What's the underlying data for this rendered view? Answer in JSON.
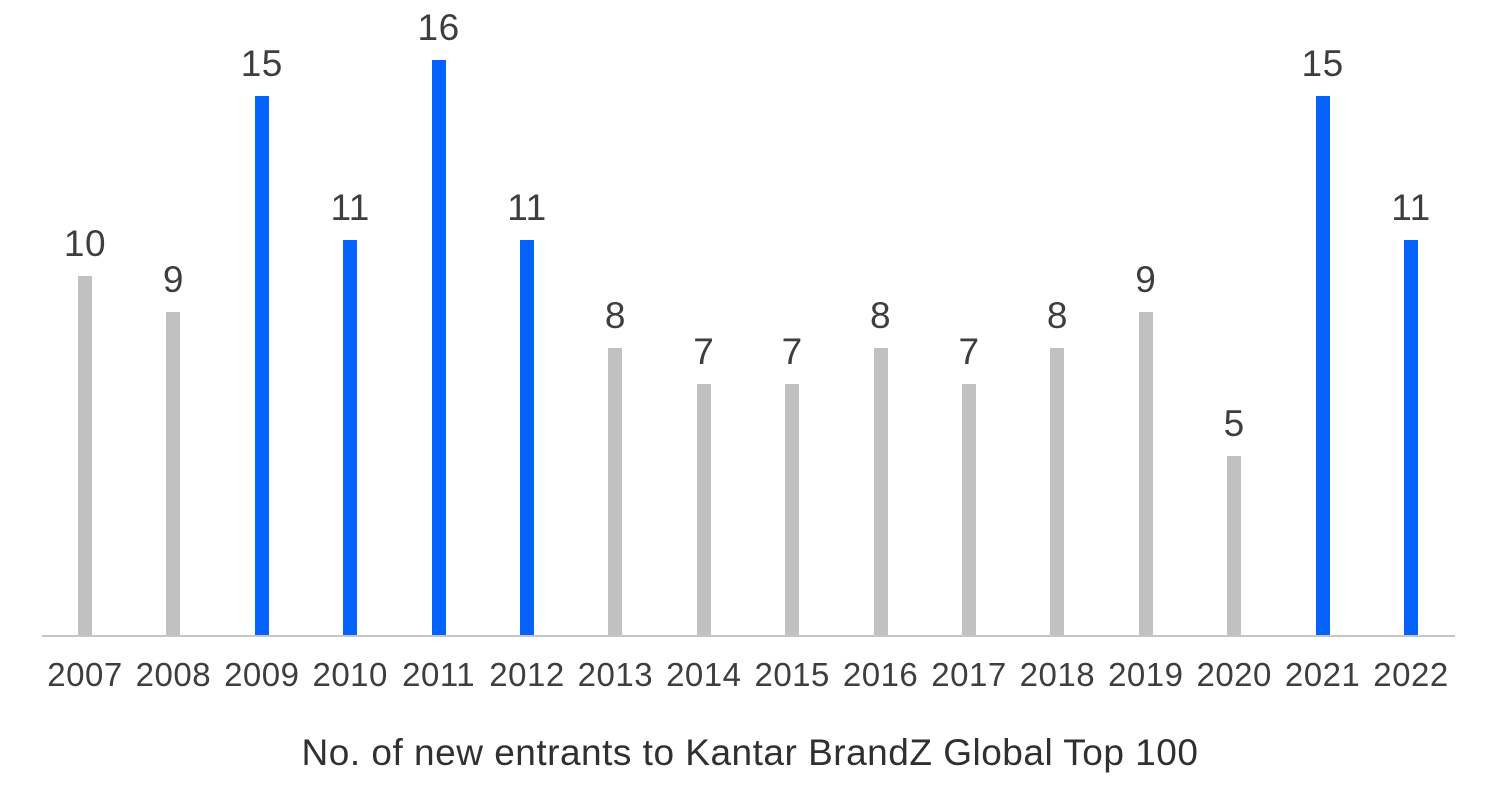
{
  "chart_data": {
    "type": "bar",
    "title": "No. of new entrants to Kantar BrandZ Global Top 100",
    "categories": [
      "2007",
      "2008",
      "2009",
      "2010",
      "2011",
      "2012",
      "2013",
      "2014",
      "2015",
      "2016",
      "2017",
      "2018",
      "2019",
      "2020",
      "2021",
      "2022"
    ],
    "values": [
      10,
      9,
      15,
      11,
      16,
      11,
      8,
      7,
      7,
      8,
      7,
      8,
      9,
      5,
      15,
      11
    ],
    "bar_colors": [
      "gray",
      "gray",
      "blue",
      "blue",
      "blue",
      "blue",
      "gray",
      "gray",
      "gray",
      "gray",
      "gray",
      "gray",
      "gray",
      "gray",
      "blue",
      "blue"
    ],
    "xlabel": "",
    "ylabel": "",
    "ylim": [
      0,
      16
    ],
    "grid": false,
    "legend": false,
    "data_labels": true
  },
  "colors": {
    "blue": "#0563fb",
    "gray": "#c1c1c1",
    "axis": "#c6c6c6",
    "label_text": "#3e3e3e",
    "title_text": "#303030",
    "background": "#ffffff"
  }
}
